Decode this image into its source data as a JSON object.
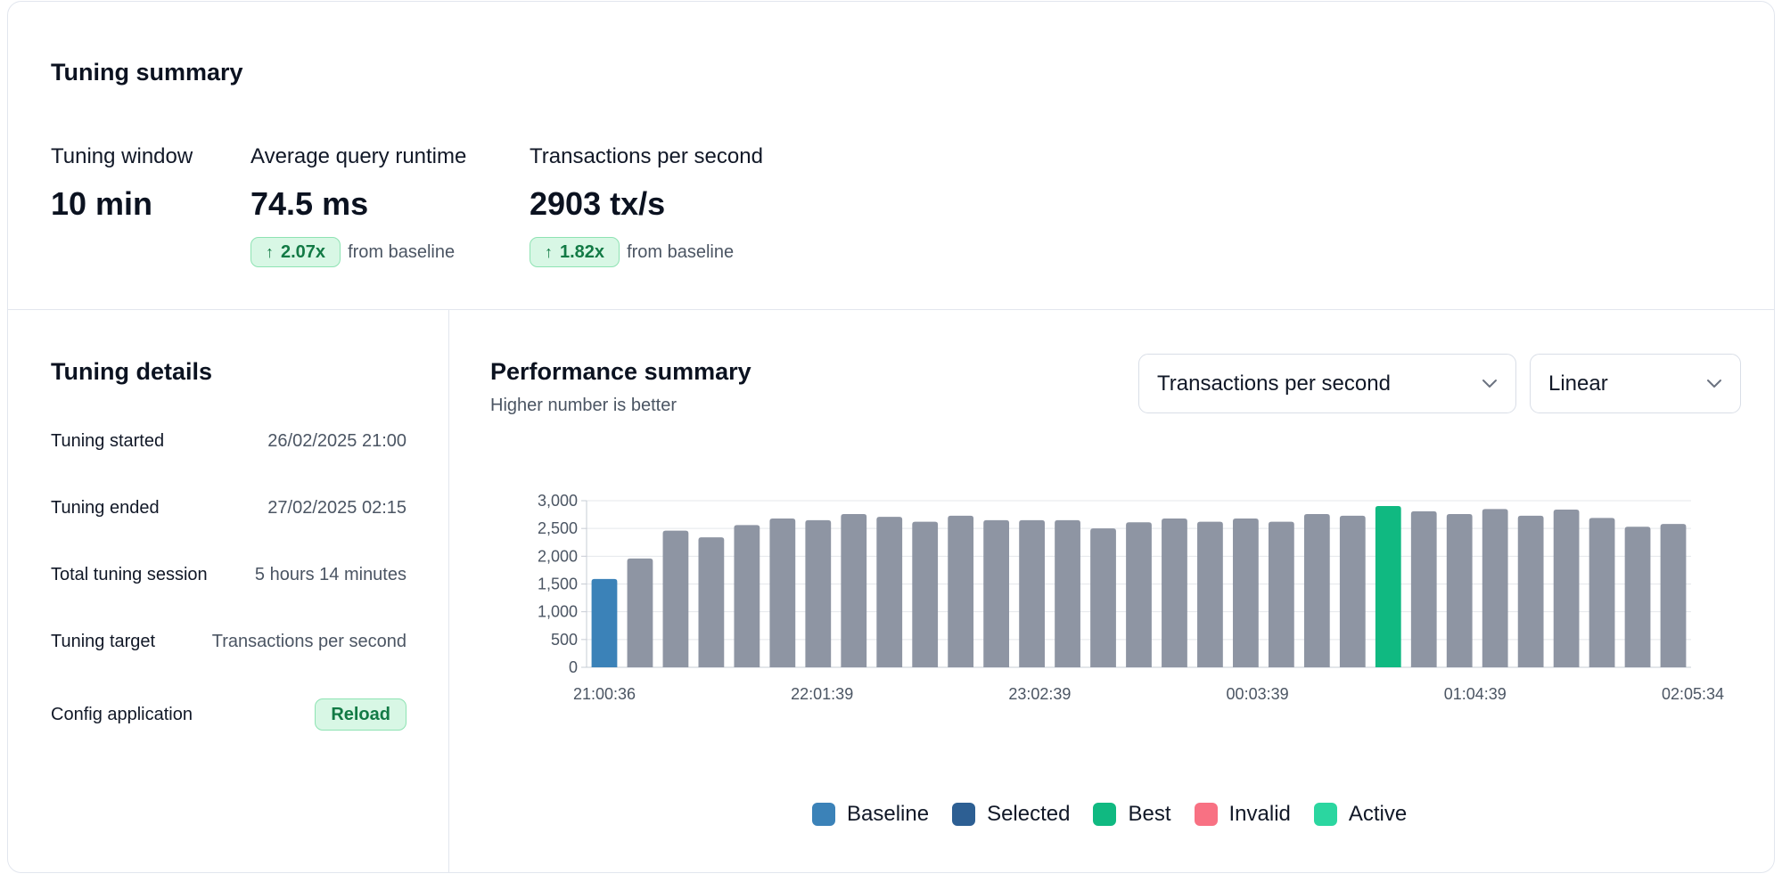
{
  "summary": {
    "title": "Tuning summary",
    "metrics": [
      {
        "label": "Tuning window",
        "value": "10 min"
      },
      {
        "label": "Average query runtime",
        "value": "74.5 ms",
        "delta": "2.07x",
        "delta_suffix": "from baseline"
      },
      {
        "label": "Transactions per second",
        "value": "2903 tx/s",
        "delta": "1.82x",
        "delta_suffix": "from baseline"
      }
    ]
  },
  "details": {
    "title": "Tuning details",
    "rows": [
      {
        "key": "Tuning started",
        "value": "26/02/2025 21:00"
      },
      {
        "key": "Tuning ended",
        "value": "27/02/2025 02:15"
      },
      {
        "key": "Total tuning session",
        "value": "5 hours 14 minutes"
      },
      {
        "key": "Tuning target",
        "value": "Transactions per second"
      },
      {
        "key": "Config application",
        "value": "Reload"
      }
    ]
  },
  "performance": {
    "title": "Performance summary",
    "subtitle": "Higher number is better",
    "metric_select": "Transactions per second",
    "scale_select": "Linear",
    "legend": [
      {
        "label": "Baseline",
        "color": "#3b82b8"
      },
      {
        "label": "Selected",
        "color": "#2d5f93"
      },
      {
        "label": "Best",
        "color": "#10b981"
      },
      {
        "label": "Invalid",
        "color": "#f87183"
      },
      {
        "label": "Active",
        "color": "#2bd6a0"
      }
    ]
  },
  "colors": {
    "default_bar": "#8e95a3",
    "grid": "#e5e7eb",
    "axis_text": "#4b5563"
  },
  "chart_data": {
    "type": "bar",
    "ylim": [
      0,
      3000
    ],
    "yticks": [
      "0",
      "500",
      "1,000",
      "1,500",
      "2,000",
      "2,500",
      "3,000"
    ],
    "xtick_labels": [
      "21:00:36",
      "22:01:39",
      "23:02:39",
      "00:03:39",
      "01:04:39",
      "02:05:34"
    ],
    "values": [
      1590,
      1960,
      2460,
      2340,
      2560,
      2680,
      2650,
      2760,
      2710,
      2620,
      2730,
      2650,
      2650,
      2650,
      2500,
      2610,
      2680,
      2620,
      2680,
      2620,
      2760,
      2730,
      2903,
      2810,
      2760,
      2850,
      2730,
      2840,
      2690,
      2530,
      2580
    ],
    "status": [
      "baseline",
      "",
      "",
      "",
      "",
      "",
      "",
      "",
      "",
      "",
      "",
      "",
      "",
      "",
      "",
      "",
      "",
      "",
      "",
      "",
      "",
      "",
      "best",
      "",
      "",
      "",
      "",
      "",
      "",
      "",
      ""
    ]
  }
}
